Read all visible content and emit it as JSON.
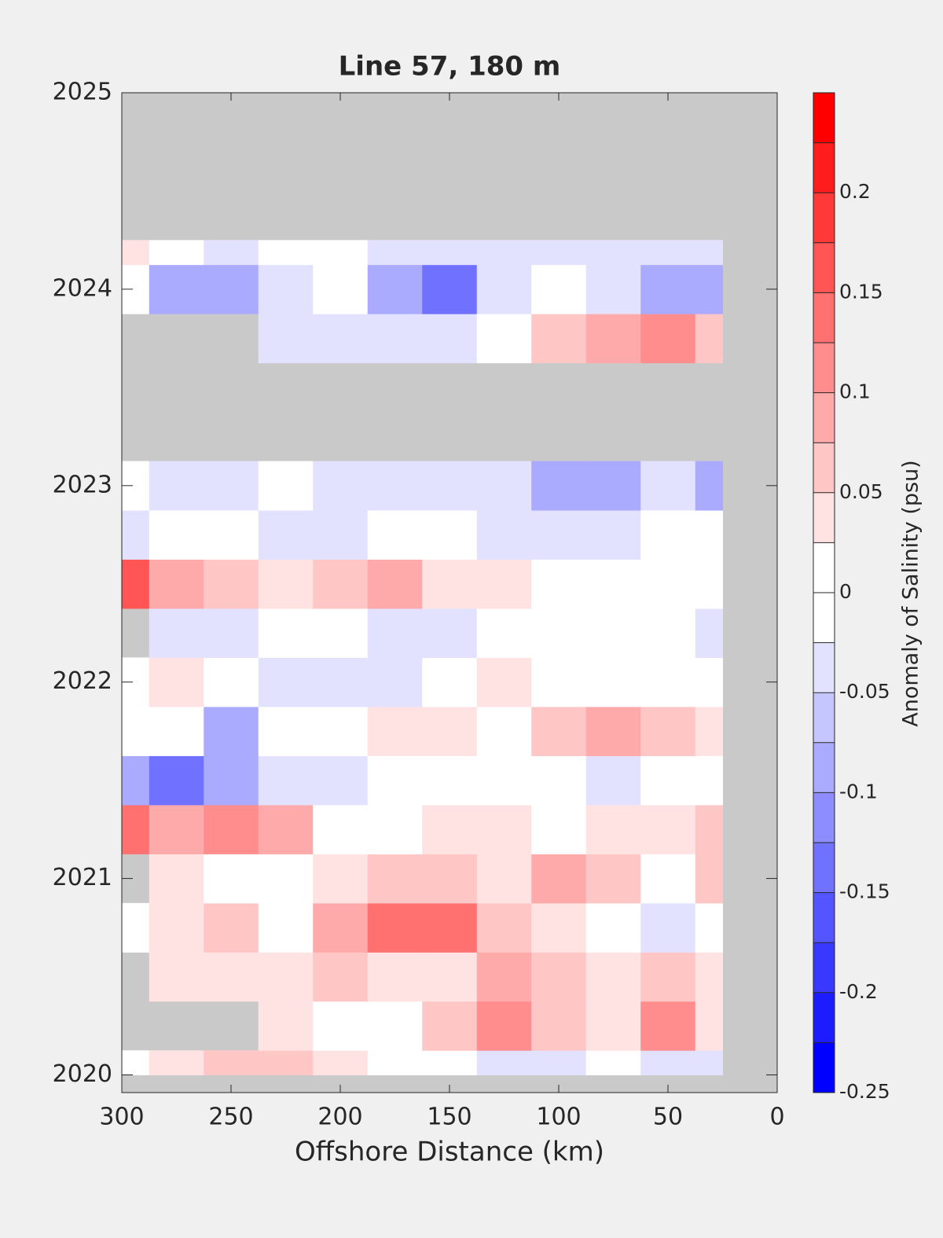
{
  "chart_data": {
    "type": "contour",
    "title": "Line 57, 180 m",
    "xlabel": "Offshore Distance (km)",
    "x": [
      300,
      275,
      250,
      225,
      200,
      175,
      150,
      125,
      100,
      75,
      50,
      25
    ],
    "y": [
      2020.0,
      2020.25,
      2020.5,
      2020.75,
      2021.0,
      2021.25,
      2021.5,
      2021.75,
      2022.0,
      2022.25,
      2022.5,
      2022.75,
      2023.0,
      2023.25,
      2023.5,
      2023.75,
      2024.0,
      2024.25
    ],
    "z": [
      [
        0,
        0.03,
        0.05,
        0.05,
        0.03,
        0,
        0,
        -0.03,
        -0.03,
        0,
        -0.03,
        -0.03
      ],
      [
        null,
        null,
        null,
        0.03,
        0,
        0,
        0.05,
        0.1,
        0.05,
        0.03,
        0.1,
        0.03
      ],
      [
        null,
        0.03,
        0.03,
        0.03,
        0.05,
        0.03,
        0.03,
        0.08,
        0.05,
        0.03,
        0.05,
        0.03
      ],
      [
        0,
        0.03,
        0.05,
        0,
        0.08,
        0.13,
        0.13,
        0.05,
        0.03,
        0,
        -0.03,
        0
      ],
      [
        null,
        0.03,
        0,
        0,
        0.03,
        0.05,
        0.05,
        0.03,
        0.08,
        0.05,
        0,
        0.05
      ],
      [
        0.13,
        0.08,
        0.1,
        0.08,
        0,
        0,
        0.03,
        0.03,
        0,
        0.03,
        0.03,
        0.05
      ],
      [
        -0.1,
        -0.15,
        -0.1,
        -0.05,
        -0.05,
        0,
        0,
        0,
        0,
        -0.03,
        0,
        0
      ],
      [
        0,
        0,
        -0.08,
        0,
        0,
        0.03,
        0.03,
        0,
        0.05,
        0.08,
        0.05,
        0.03
      ],
      [
        0,
        0.03,
        0,
        -0.03,
        -0.05,
        -0.03,
        0,
        0.03,
        0,
        0,
        0,
        0
      ],
      [
        null,
        -0.03,
        -0.03,
        0,
        0,
        -0.03,
        -0.05,
        0,
        0,
        0,
        0,
        -0.03
      ],
      [
        0.15,
        0.08,
        0.05,
        0.03,
        0.05,
        0.08,
        0.03,
        0.03,
        0,
        0,
        0,
        0
      ],
      [
        -0.05,
        0,
        0,
        -0.03,
        -0.05,
        0,
        0,
        -0.03,
        -0.05,
        -0.03,
        0,
        0
      ],
      [
        0,
        -0.03,
        -0.05,
        0,
        -0.03,
        -0.05,
        -0.05,
        -0.05,
        -0.08,
        -0.08,
        -0.05,
        -0.1
      ],
      [
        null,
        null,
        null,
        null,
        null,
        null,
        null,
        null,
        null,
        null,
        null,
        null
      ],
      [
        null,
        null,
        null,
        null,
        null,
        null,
        null,
        null,
        null,
        null,
        null,
        null
      ],
      [
        null,
        null,
        null,
        -0.03,
        -0.03,
        -0.05,
        -0.05,
        0,
        0.05,
        0.08,
        0.1,
        0.05
      ],
      [
        0,
        -0.08,
        -0.1,
        -0.05,
        0,
        -0.1,
        -0.13,
        -0.05,
        0,
        -0.03,
        -0.1,
        -0.08
      ],
      [
        0.03,
        0,
        -0.03,
        0,
        0,
        -0.05,
        -0.03,
        -0.03,
        -0.05,
        -0.05,
        -0.03,
        -0.05
      ]
    ],
    "xlim": [
      300,
      0
    ],
    "xticks": [
      300,
      250,
      200,
      150,
      100,
      50,
      0
    ],
    "ylim": [
      2019.91,
      2025
    ],
    "yticks": [
      2020,
      2021,
      2022,
      2023,
      2024,
      2025
    ],
    "missing_color": "#c9c9c9",
    "colorbar": {
      "label": "Anomaly of Salinity (psu)",
      "levels": [
        -0.25,
        -0.225,
        -0.2,
        -0.175,
        -0.15,
        -0.125,
        -0.1,
        -0.075,
        -0.05,
        -0.025,
        0,
        0.025,
        0.05,
        0.075,
        0.1,
        0.125,
        0.15,
        0.175,
        0.2,
        0.225,
        0.25
      ],
      "colors": [
        "#0000ff",
        "#1c1cff",
        "#3838ff",
        "#5555ff",
        "#7171ff",
        "#8d8dff",
        "#aaaaff",
        "#c6c6ff",
        "#e2e2ff",
        "#ffffff",
        "#ffffff",
        "#ffe2e2",
        "#ffc6c6",
        "#ffaaaa",
        "#ff8d8d",
        "#ff7171",
        "#ff5555",
        "#ff3838",
        "#ff1c1c",
        "#ff0000"
      ],
      "ticks": [
        -0.25,
        -0.2,
        -0.15,
        -0.1,
        -0.05,
        0,
        0.05,
        0.1,
        0.15,
        0.2
      ]
    }
  }
}
